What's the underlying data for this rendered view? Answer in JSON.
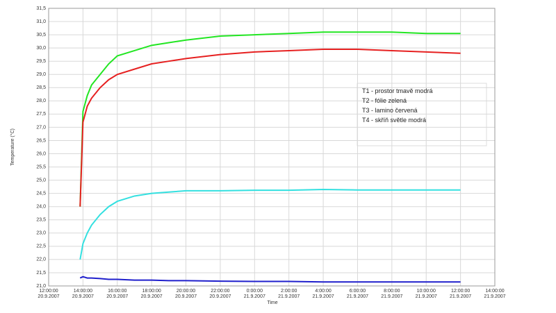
{
  "chart_data": {
    "type": "line",
    "y_label": "Temperature (°C)",
    "x_label": "Time",
    "x": [
      "20.9.2007 13:50",
      "20.9.2007 14:00",
      "20.9.2007 14:15",
      "20.9.2007 14:30",
      "20.9.2007 15:00",
      "20.9.2007 15:30",
      "20.9.2007 16:00",
      "20.9.2007 17:00",
      "20.9.2007 18:00",
      "20.9.2007 19:00",
      "20.9.2007 20:00",
      "20.9.2007 22:00",
      "21.9.2007 0:00",
      "21.9.2007 2:00",
      "21.9.2007 4:00",
      "21.9.2007 6:00",
      "21.9.2007 8:00",
      "21.9.2007 10:00",
      "21.9.2007 12:00"
    ],
    "series": [
      {
        "name": "T1 - prostor tmavě modrá",
        "color": "#1f1fcc",
        "values": [
          21.3,
          21.35,
          21.3,
          21.3,
          21.28,
          21.25,
          21.25,
          21.22,
          21.22,
          21.2,
          21.2,
          21.18,
          21.17,
          21.17,
          21.15,
          21.15,
          21.15,
          21.15,
          21.15
        ]
      },
      {
        "name": "T2 - fólie zelená",
        "color": "#22e622",
        "values": [
          24.0,
          27.6,
          28.2,
          28.6,
          29.0,
          29.4,
          29.7,
          29.9,
          30.1,
          30.2,
          30.3,
          30.45,
          30.5,
          30.55,
          30.6,
          30.6,
          30.6,
          30.55,
          30.55
        ]
      },
      {
        "name": "T3 - lamino červená",
        "color": "#e62020",
        "values": [
          24.0,
          27.2,
          27.8,
          28.1,
          28.5,
          28.8,
          29.0,
          29.2,
          29.4,
          29.5,
          29.6,
          29.75,
          29.85,
          29.9,
          29.95,
          29.95,
          29.9,
          29.85,
          29.8
        ]
      },
      {
        "name": "T4 - skříň světle modrá",
        "color": "#33e0e0",
        "values": [
          22.0,
          22.6,
          23.0,
          23.3,
          23.7,
          24.0,
          24.2,
          24.4,
          24.5,
          24.55,
          24.6,
          24.6,
          24.62,
          24.62,
          24.65,
          24.63,
          24.63,
          24.63,
          24.63
        ]
      }
    ],
    "xlim": [
      "12:00:00\n20.9.2007",
      "14:00:00\n21.9.2007"
    ],
    "xticks": [
      "12:00:00\n20.9.2007",
      "14:00:00\n20.9.2007",
      "16:00:00\n20.9.2007",
      "18:00:00\n20.9.2007",
      "20:00:00\n20.9.2007",
      "22:00:00\n20.9.2007",
      "0:00:00\n21.9.2007",
      "2:00:00\n21.9.2007",
      "4:00:00\n21.9.2007",
      "6:00:00\n21.9.2007",
      "8:00:00\n21.9.2007",
      "10:00:00\n21.9.2007",
      "12:00:00\n21.9.2007",
      "14:00:00\n21.9.2007"
    ],
    "ylim": [
      21.0,
      31.5
    ],
    "yticks": [
      {
        "value": 21.0,
        "label": "21,0"
      },
      {
        "value": 21.5,
        "label": "21,5"
      },
      {
        "value": 22.0,
        "label": "22,0"
      },
      {
        "value": 22.5,
        "label": "22,5"
      },
      {
        "value": 23.0,
        "label": "23,0"
      },
      {
        "value": 23.5,
        "label": "23,5"
      },
      {
        "value": 24.0,
        "label": "24,0"
      },
      {
        "value": 24.5,
        "label": "24,5"
      },
      {
        "value": 25.0,
        "label": "25,0"
      },
      {
        "value": 25.5,
        "label": "25,5"
      },
      {
        "value": 26.0,
        "label": "26,0"
      },
      {
        "value": 26.5,
        "label": "26,5"
      },
      {
        "value": 27.0,
        "label": "27,0"
      },
      {
        "value": 27.5,
        "label": "27,5"
      },
      {
        "value": 28.0,
        "label": "28,0"
      },
      {
        "value": 28.5,
        "label": "28,5"
      },
      {
        "value": 29.0,
        "label": "29,0"
      },
      {
        "value": 29.5,
        "label": "29,5"
      },
      {
        "value": 30.0,
        "label": "30,0"
      },
      {
        "value": 30.5,
        "label": "30,5"
      },
      {
        "value": 31.0,
        "label": "31,0"
      },
      {
        "value": 31.5,
        "label": "31,5"
      }
    ],
    "grid": true
  }
}
